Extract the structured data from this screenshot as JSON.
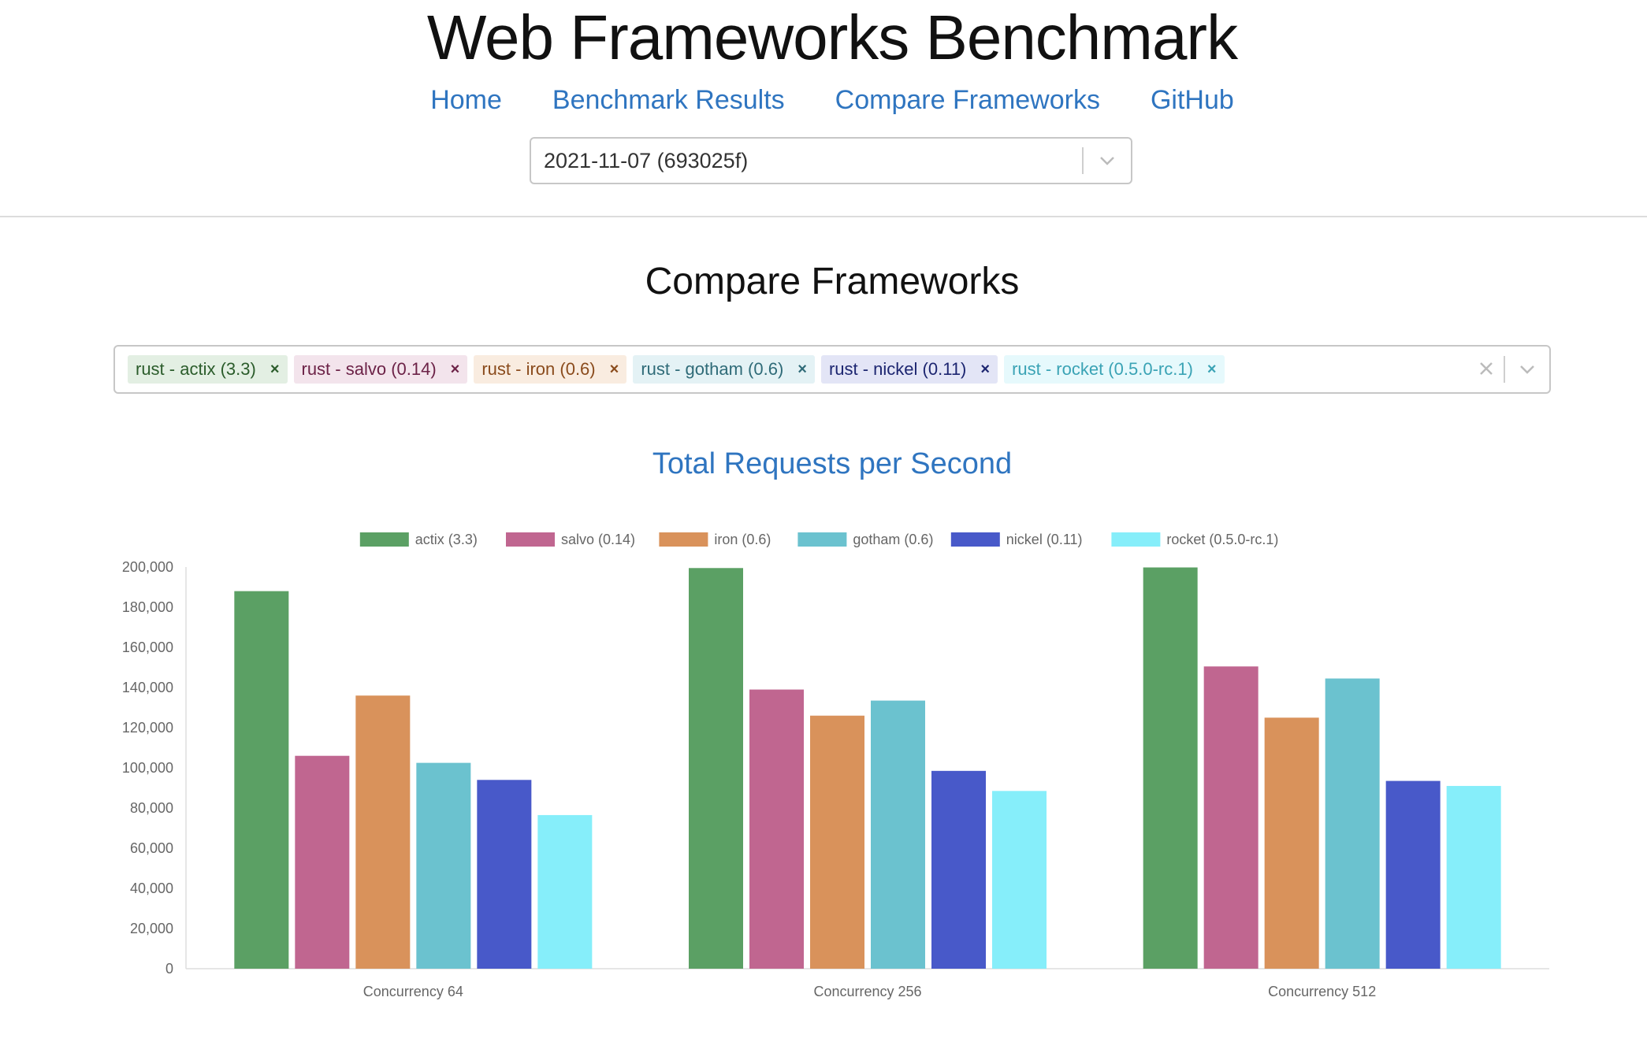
{
  "site": {
    "title": "Web Frameworks Benchmark"
  },
  "nav": {
    "items": [
      "Home",
      "Benchmark Results",
      "Compare Frameworks",
      "GitHub"
    ]
  },
  "date_select": {
    "value": "2021-11-07 (693025f)",
    "icon": "chevron-down-icon"
  },
  "page": {
    "section_title": "Compare Frameworks"
  },
  "frameworks_select": {
    "tags": [
      {
        "label": "rust - actix (3.3)",
        "bg": "#e3efe3",
        "fg": "#2b5c2b"
      },
      {
        "label": "rust - salvo (0.14)",
        "bg": "#f3e4ec",
        "fg": "#6c2247"
      },
      {
        "label": "rust - iron (0.6)",
        "bg": "#f9ece0",
        "fg": "#8a4b1c"
      },
      {
        "label": "rust - gotham (0.6)",
        "bg": "#e4f2f5",
        "fg": "#2f6b78"
      },
      {
        "label": "rust - nickel (0.11)",
        "bg": "#e3e5f6",
        "fg": "#1c2570"
      },
      {
        "label": "rust - rocket (0.5.0-rc.1)",
        "bg": "#e6f9fc",
        "fg": "#3aa3b5"
      }
    ],
    "remove_icon": "close-icon",
    "clear_icon": "clear-icon",
    "dropdown_icon": "chevron-down-icon"
  },
  "chart_data": {
    "type": "bar",
    "title": "Total Requests per Second",
    "categories": [
      "Concurrency 64",
      "Concurrency 256",
      "Concurrency 512"
    ],
    "series": [
      {
        "name": "actix (3.3)",
        "color": "#5ba064",
        "values": [
          188000,
          199500,
          199800
        ]
      },
      {
        "name": "salvo (0.14)",
        "color": "#c06690",
        "values": [
          106000,
          139000,
          150500
        ]
      },
      {
        "name": "iron (0.6)",
        "color": "#d9925b",
        "values": [
          136000,
          126000,
          125000
        ]
      },
      {
        "name": "gotham (0.6)",
        "color": "#6bc2cf",
        "values": [
          102500,
          133500,
          144500
        ]
      },
      {
        "name": "nickel (0.11)",
        "color": "#4859c9",
        "values": [
          94000,
          98500,
          93500
        ]
      },
      {
        "name": "rocket (0.5.0-rc.1)",
        "color": "#86eefa",
        "values": [
          76500,
          88500,
          91000
        ]
      }
    ],
    "ylim": [
      0,
      200000
    ],
    "yticks": [
      "0",
      "20,000",
      "40,000",
      "60,000",
      "80,000",
      "100,000",
      "120,000",
      "140,000",
      "160,000",
      "180,000",
      "200,000"
    ],
    "legend": "top",
    "grid": false
  }
}
